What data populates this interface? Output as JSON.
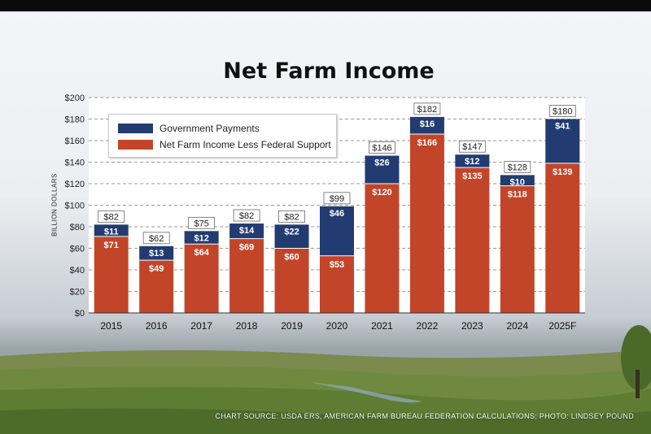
{
  "title": "Net Farm Income",
  "source_note": "CHART SOURCE: USDA ERS, AMERICAN FARM BUREAU FEDERATION CALCULATIONS; PHOTO: LINDSEY POUND",
  "colors": {
    "government_payments": "#223c72",
    "net_income_less_support": "#c2452a",
    "plot_background": "#ffffff"
  },
  "chart_data": {
    "type": "bar",
    "stacked": true,
    "title": "Net Farm Income",
    "ylabel": "BILLION DOLLARS",
    "xlabel": "",
    "ylim": [
      0,
      200
    ],
    "y_ticks": [
      "$0",
      "$20",
      "$40",
      "$60",
      "$80",
      "$100",
      "$120",
      "$140",
      "$160",
      "$180",
      "$200"
    ],
    "grid": "horizontal dashed",
    "legend_position": "top-left",
    "categories": [
      "2015",
      "2016",
      "2017",
      "2018",
      "2019",
      "2020",
      "2021",
      "2022",
      "2023",
      "2024",
      "2025F"
    ],
    "series": [
      {
        "name": "Net Farm Income Less Federal Support",
        "values": [
          71,
          49,
          64,
          69,
          60,
          53,
          120,
          166,
          135,
          118,
          139
        ],
        "labels": [
          "$71",
          "$49",
          "$64",
          "$69",
          "$60",
          "$53",
          "$120",
          "$166",
          "$135",
          "$118",
          "$139"
        ]
      },
      {
        "name": "Government Payments",
        "values": [
          11,
          13,
          12,
          14,
          22,
          46,
          26,
          16,
          12,
          10,
          41
        ],
        "labels": [
          "$11",
          "$13",
          "$12",
          "$14",
          "$22",
          "$46",
          "$26",
          "$16",
          "$12",
          "$10",
          "$41"
        ]
      }
    ],
    "totals": [
      82,
      62,
      75,
      82,
      82,
      99,
      146,
      182,
      147,
      128,
      180
    ],
    "total_labels": [
      "$82",
      "$62",
      "$75",
      "$82",
      "$82",
      "$99",
      "$146",
      "$182",
      "$147",
      "$128",
      "$180"
    ]
  }
}
